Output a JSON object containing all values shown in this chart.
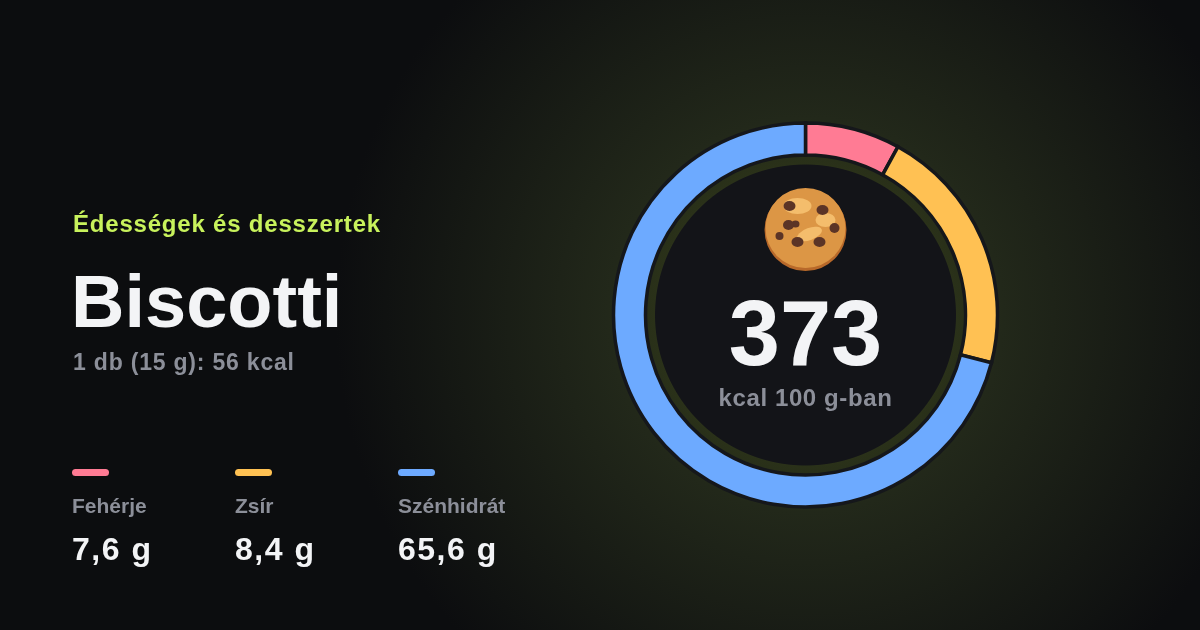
{
  "chart_data": {
    "type": "donut",
    "title": "Biscotti",
    "subtitle": "1 db (15 g): 56 kcal",
    "categories": [
      "Fehérje",
      "Zsír",
      "Szénhidrát"
    ],
    "values": [
      8,
      21,
      71
    ],
    "colors": [
      "#ff7b94",
      "#ffc153",
      "#6daaff"
    ],
    "legend": "left",
    "annotations": [
      "Édességek és desszertek",
      "373",
      "kcal 100 g-ban",
      "7,6 g",
      "8,4 g",
      "65,6 g"
    ]
  }
}
